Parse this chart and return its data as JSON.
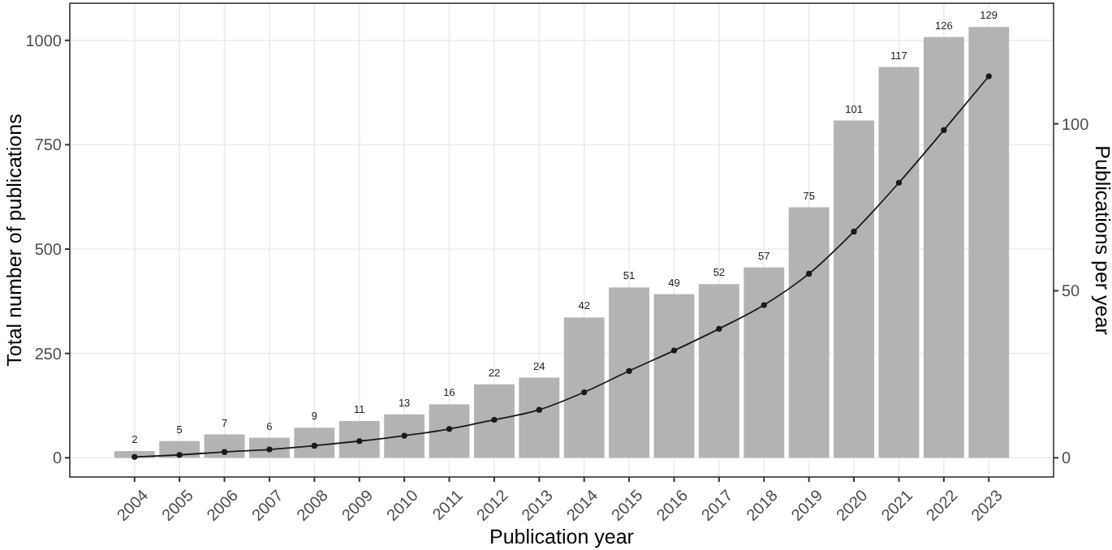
{
  "chart_data": {
    "type": "bar",
    "xlabel": "Publication year",
    "ylabel": "Total number of publications",
    "y2label": "Publications per year",
    "categories": [
      "2004",
      "2005",
      "2006",
      "2007",
      "2008",
      "2009",
      "2010",
      "2011",
      "2012",
      "2013",
      "2014",
      "2015",
      "2016",
      "2017",
      "2018",
      "2019",
      "2020",
      "2021",
      "2022",
      "2023"
    ],
    "series": [
      {
        "axis": "y2",
        "color": "#b3b3b3",
        "data_labels": true,
        "values": [
          2,
          5,
          7,
          6,
          9,
          11,
          13,
          16,
          22,
          24,
          42,
          51,
          49,
          52,
          57,
          75,
          101,
          117,
          126,
          129
        ]
      },
      {
        "type": "line",
        "axis": "y",
        "color": "#1a1a1a",
        "marker": "circle",
        "line_style": "solid",
        "values": [
          2,
          7,
          14,
          20,
          29,
          40,
          53,
          69,
          91,
          115,
          157,
          208,
          257,
          309,
          366,
          441,
          542,
          659,
          785,
          914
        ]
      }
    ],
    "ylim": [
      -46,
      1089
    ],
    "yticks": [
      0,
      250,
      500,
      750,
      1000
    ],
    "y2lim": [
      -5.75,
      136.1
    ],
    "y2ticks": [
      0,
      50,
      100
    ],
    "grid": true
  }
}
